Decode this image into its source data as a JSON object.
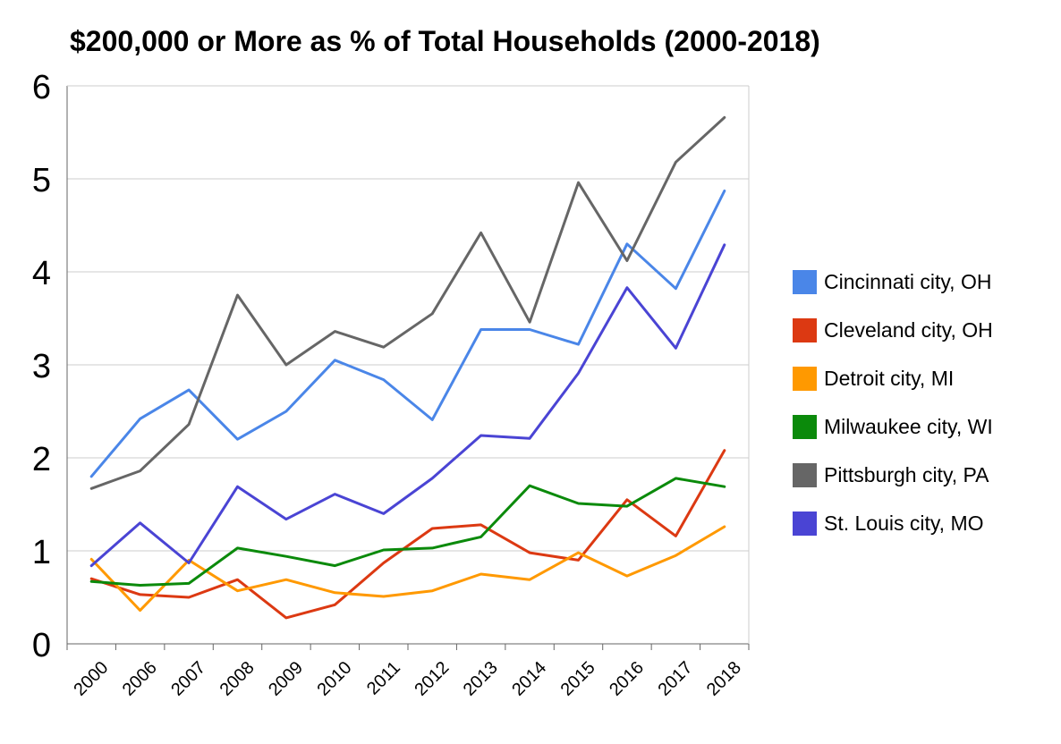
{
  "chart_data": {
    "type": "line",
    "title": "$200,000 or More as % of Total Households (2000-2018)",
    "xlabel": "",
    "ylabel": "",
    "categories": [
      "2000",
      "2006",
      "2007",
      "2008",
      "2009",
      "2010",
      "2011",
      "2012",
      "2013",
      "2014",
      "2015",
      "2016",
      "2017",
      "2018"
    ],
    "ylim": [
      0,
      6
    ],
    "yticks": [
      0,
      1,
      2,
      3,
      4,
      5,
      6
    ],
    "grid": true,
    "legend_position": "right",
    "series": [
      {
        "name": "Cincinnati city, OH",
        "color": "#4a86e8",
        "values": [
          1.8,
          2.42,
          2.73,
          2.2,
          2.5,
          3.05,
          2.84,
          2.41,
          3.38,
          3.38,
          3.22,
          4.3,
          3.82,
          4.87
        ]
      },
      {
        "name": "Cleveland city, OH",
        "color": "#dc3912",
        "values": [
          0.7,
          0.53,
          0.5,
          0.69,
          0.28,
          0.42,
          0.87,
          1.24,
          1.28,
          0.98,
          0.9,
          1.55,
          1.16,
          2.08
        ]
      },
      {
        "name": "Detroit city, MI",
        "color": "#ff9900",
        "values": [
          0.91,
          0.36,
          0.9,
          0.57,
          0.69,
          0.55,
          0.51,
          0.57,
          0.75,
          0.69,
          0.98,
          0.73,
          0.95,
          1.26
        ]
      },
      {
        "name": "Milwaukee city, WI",
        "color": "#0b8a0b",
        "values": [
          0.67,
          0.63,
          0.65,
          1.03,
          0.94,
          0.84,
          1.01,
          1.03,
          1.15,
          1.7,
          1.51,
          1.48,
          1.78,
          1.69
        ]
      },
      {
        "name": "Pittsburgh city, PA",
        "color": "#666666",
        "values": [
          1.67,
          1.86,
          2.36,
          3.75,
          3.0,
          3.36,
          3.19,
          3.55,
          4.42,
          3.46,
          4.96,
          4.12,
          5.18,
          5.66
        ]
      },
      {
        "name": "St. Louis city, MO",
        "color": "#4a44d4",
        "values": [
          0.84,
          1.3,
          0.87,
          1.69,
          1.34,
          1.61,
          1.4,
          1.78,
          2.24,
          2.21,
          2.91,
          3.83,
          3.18,
          4.29
        ]
      }
    ]
  }
}
